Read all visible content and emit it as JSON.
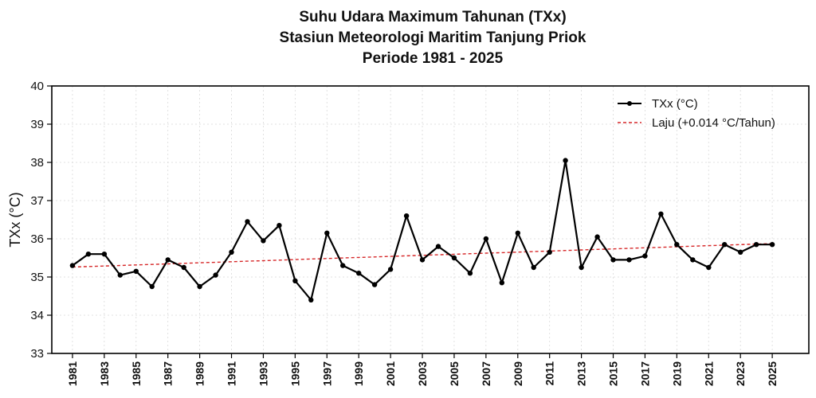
{
  "chart_data": {
    "type": "line",
    "title_lines": [
      "Suhu Udara Maximum Tahunan (TXx)",
      "Stasiun Meteorologi Maritim Tanjung Priok",
      "Periode 1981 - 2025"
    ],
    "xlabel": "",
    "ylabel": "TXx (°C)",
    "xlim": [
      1979.7,
      2027.3
    ],
    "ylim": [
      33,
      40
    ],
    "yticks": [
      33,
      34,
      35,
      36,
      37,
      38,
      39,
      40
    ],
    "xticks": [
      1981,
      1983,
      1985,
      1987,
      1989,
      1991,
      1993,
      1995,
      1997,
      1999,
      2001,
      2003,
      2005,
      2007,
      2009,
      2011,
      2013,
      2015,
      2017,
      2019,
      2021,
      2023,
      2025
    ],
    "grid": true,
    "legend_position": "top-right",
    "x": [
      1981,
      1982,
      1983,
      1984,
      1985,
      1986,
      1987,
      1988,
      1989,
      1990,
      1991,
      1992,
      1993,
      1994,
      1995,
      1996,
      1997,
      1998,
      1999,
      2000,
      2001,
      2002,
      2003,
      2004,
      2005,
      2006,
      2007,
      2008,
      2009,
      2010,
      2011,
      2012,
      2013,
      2014,
      2015,
      2016,
      2017,
      2018,
      2019,
      2020,
      2021,
      2022,
      2023,
      2024,
      2025
    ],
    "series": [
      {
        "name": "TXx (°C)",
        "color": "#000000",
        "style": "solid-with-markers",
        "values": [
          35.3,
          35.6,
          35.6,
          35.05,
          35.15,
          34.75,
          35.45,
          35.25,
          34.75,
          35.05,
          35.65,
          36.45,
          35.95,
          36.35,
          34.9,
          34.4,
          36.15,
          35.3,
          35.1,
          34.8,
          35.2,
          36.6,
          35.45,
          35.8,
          35.5,
          35.1,
          36.0,
          34.85,
          36.15,
          35.25,
          35.65,
          38.05,
          35.25,
          36.05,
          35.45,
          35.45,
          35.55,
          36.65,
          35.85,
          35.45,
          35.25,
          35.85,
          35.65,
          35.85,
          35.85
        ]
      },
      {
        "name": "Laju (+0.014 °C/Tahun)",
        "color": "#d62728",
        "style": "dashed",
        "values": [
          35.26,
          35.274,
          35.288,
          35.302,
          35.316,
          35.33,
          35.344,
          35.358,
          35.372,
          35.386,
          35.4,
          35.414,
          35.428,
          35.442,
          35.456,
          35.47,
          35.484,
          35.498,
          35.512,
          35.526,
          35.54,
          35.554,
          35.568,
          35.582,
          35.596,
          35.61,
          35.624,
          35.638,
          35.652,
          35.666,
          35.68,
          35.694,
          35.708,
          35.722,
          35.736,
          35.75,
          35.764,
          35.778,
          35.792,
          35.806,
          35.82,
          35.834,
          35.848,
          35.862,
          35.876
        ]
      }
    ]
  }
}
